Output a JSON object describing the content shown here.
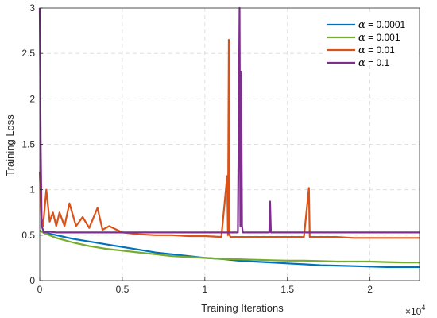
{
  "chart_data": {
    "type": "line",
    "title": "",
    "xlabel": "Training Iterations",
    "ylabel": "Training Loss",
    "xlim": [
      0,
      23000
    ],
    "ylim": [
      0,
      3
    ],
    "x_ticks": [
      0,
      5000,
      10000,
      15000,
      20000
    ],
    "x_tick_labels": [
      "0",
      "0.5",
      "1",
      "1.5",
      "2"
    ],
    "x_exponent_label": "×10",
    "x_exponent": "4",
    "y_ticks": [
      0,
      0.5,
      1,
      1.5,
      2,
      2.5,
      3
    ],
    "y_tick_labels": [
      "0",
      "0.5",
      "1",
      "1.5",
      "2",
      "2.5",
      "3"
    ],
    "grid": true,
    "legend_position": "top-right",
    "series": [
      {
        "symbol": "α",
        "label": " = 0.0001",
        "color": "#0072BD",
        "x": [
          0,
          300,
          1000,
          2000,
          3000,
          4000,
          5000,
          6000,
          7000,
          8000,
          9000,
          10000,
          11000,
          12000,
          13000,
          14000,
          15000,
          16000,
          17000,
          18000,
          19000,
          20000,
          21000,
          22000,
          23000
        ],
        "values": [
          0.55,
          0.53,
          0.5,
          0.46,
          0.43,
          0.4,
          0.37,
          0.34,
          0.31,
          0.29,
          0.27,
          0.25,
          0.24,
          0.22,
          0.21,
          0.2,
          0.19,
          0.18,
          0.17,
          0.165,
          0.16,
          0.155,
          0.15,
          0.15,
          0.15
        ]
      },
      {
        "symbol": "α",
        "label": " = 0.001",
        "color": "#77AC30",
        "x": [
          0,
          300,
          1000,
          2000,
          3000,
          4000,
          5000,
          6000,
          7000,
          8000,
          9000,
          10000,
          11000,
          12000,
          13000,
          14000,
          15000,
          16000,
          17000,
          18000,
          19000,
          20000,
          21000,
          22000,
          23000
        ],
        "values": [
          0.55,
          0.52,
          0.47,
          0.42,
          0.38,
          0.35,
          0.33,
          0.31,
          0.29,
          0.27,
          0.26,
          0.25,
          0.24,
          0.235,
          0.23,
          0.225,
          0.22,
          0.22,
          0.215,
          0.21,
          0.21,
          0.21,
          0.205,
          0.2,
          0.2
        ]
      },
      {
        "symbol": "α",
        "label": " = 0.01",
        "color": "#D95319",
        "x": [
          0,
          100,
          200,
          400,
          600,
          800,
          1000,
          1200,
          1500,
          1800,
          2200,
          2600,
          3000,
          3500,
          3800,
          4200,
          5000,
          6000,
          7000,
          8000,
          9000,
          10000,
          11000,
          11350,
          11400,
          11450,
          11500,
          11550,
          12000,
          13000,
          14000,
          15000,
          16000,
          16300,
          16350,
          16400,
          17000,
          18000,
          19000,
          20000,
          21000,
          22000,
          23000
        ],
        "values": [
          1.2,
          0.7,
          0.6,
          1.0,
          0.65,
          0.75,
          0.6,
          0.75,
          0.6,
          0.85,
          0.6,
          0.7,
          0.58,
          0.8,
          0.56,
          0.6,
          0.53,
          0.51,
          0.5,
          0.5,
          0.49,
          0.49,
          0.48,
          1.15,
          0.5,
          2.65,
          0.5,
          0.48,
          0.48,
          0.48,
          0.48,
          0.48,
          0.48,
          1.02,
          0.48,
          0.48,
          0.48,
          0.48,
          0.47,
          0.47,
          0.47,
          0.47,
          0.47
        ]
      },
      {
        "symbol": "α",
        "label": " = 0.1",
        "color": "#7E2F8E",
        "x": [
          0,
          60,
          120,
          250,
          500,
          1000,
          2000,
          3000,
          4000,
          5000,
          6000,
          7000,
          8000,
          9000,
          10000,
          11000,
          12000,
          12100,
          12150,
          12200,
          12250,
          12300,
          13000,
          13900,
          13950,
          14000,
          15000,
          16000,
          17000,
          18000,
          19000,
          20000,
          21000,
          22000,
          23000
        ],
        "values": [
          3.0,
          1.5,
          0.6,
          0.53,
          0.54,
          0.53,
          0.53,
          0.53,
          0.53,
          0.53,
          0.53,
          0.53,
          0.53,
          0.53,
          0.53,
          0.53,
          0.53,
          3.0,
          0.6,
          2.3,
          0.6,
          0.53,
          0.53,
          0.53,
          0.87,
          0.53,
          0.53,
          0.53,
          0.53,
          0.53,
          0.53,
          0.53,
          0.53,
          0.53,
          0.53
        ]
      }
    ]
  }
}
